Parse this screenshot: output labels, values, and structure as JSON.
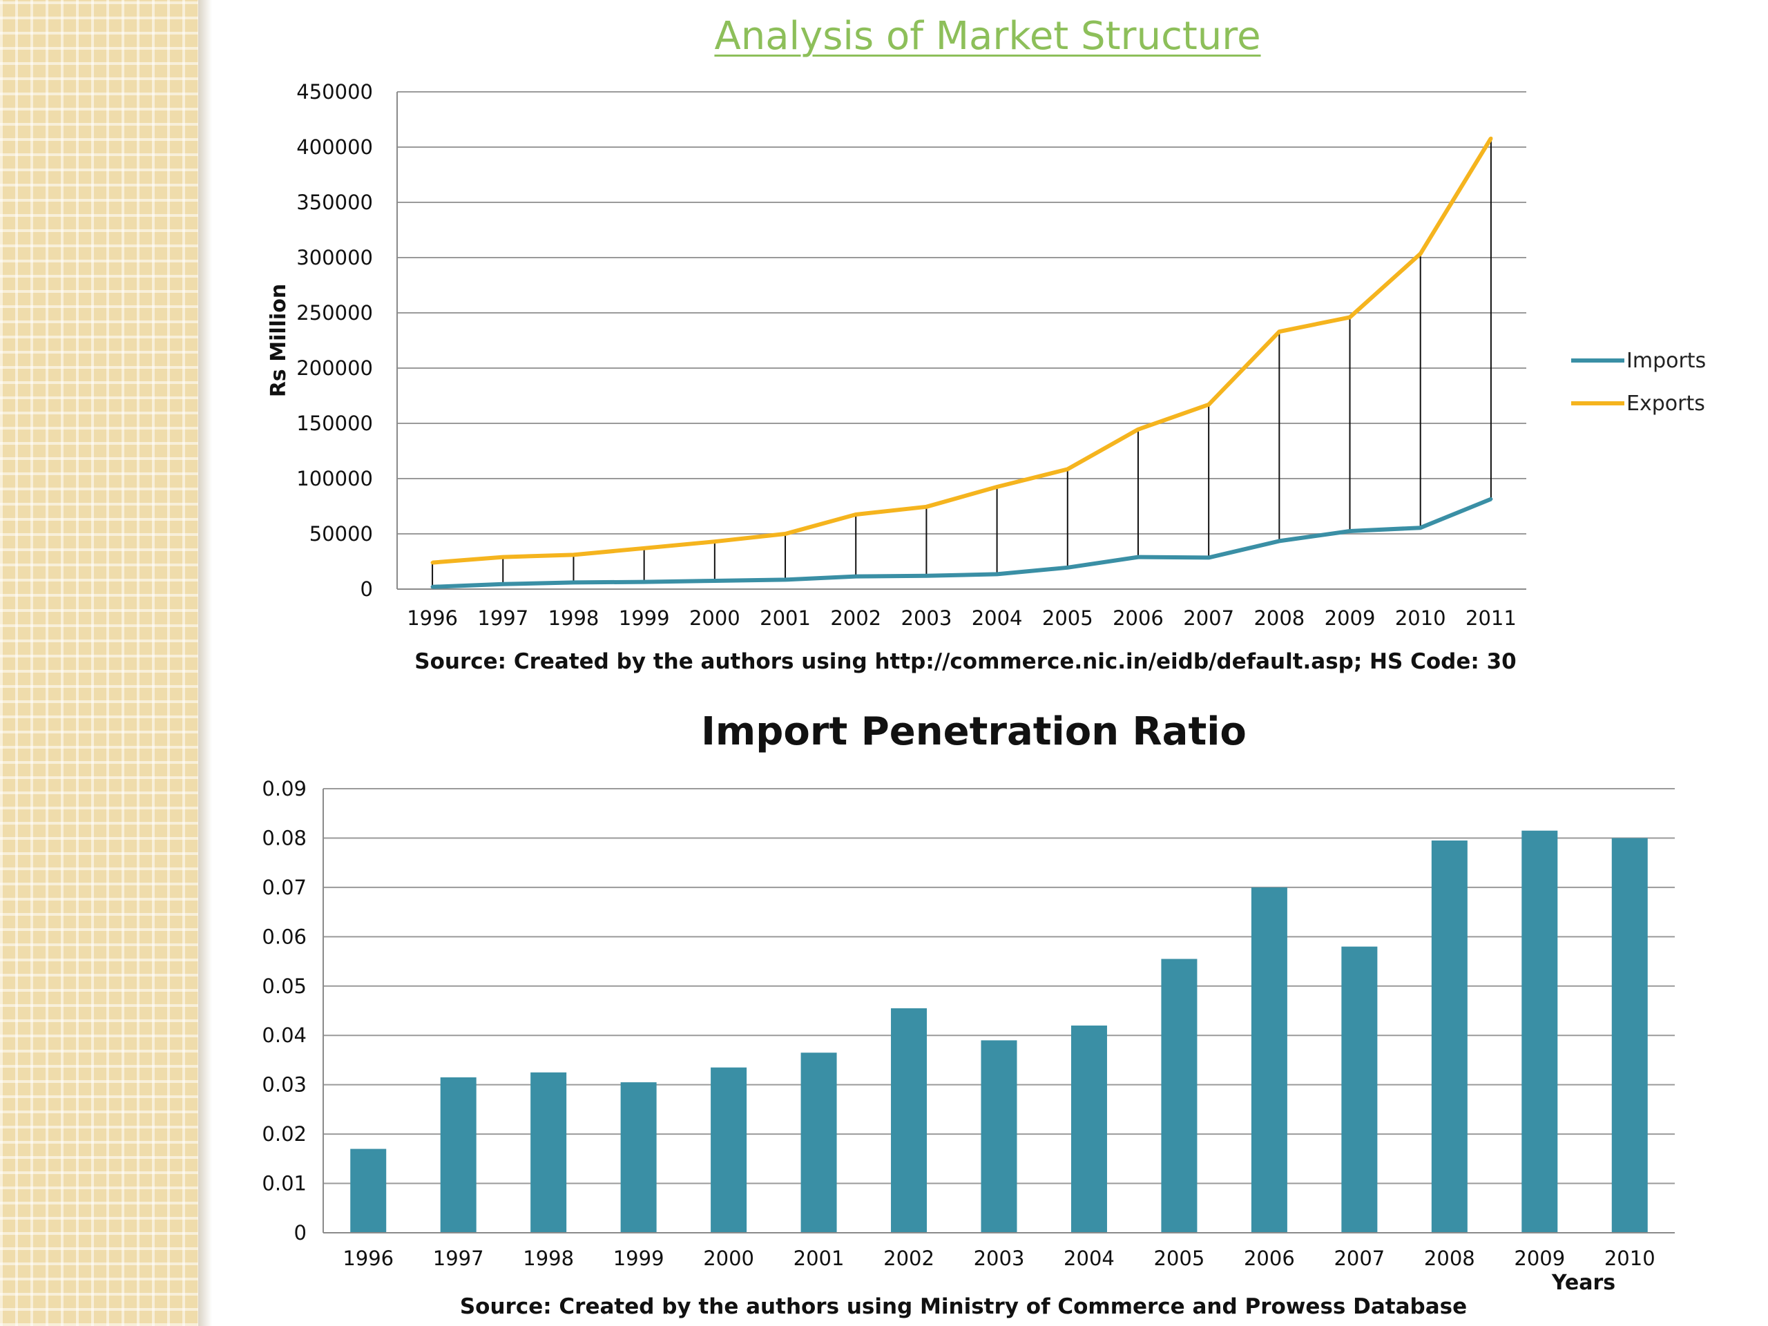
{
  "page_title": "Analysis of Market Structure",
  "chart_data": [
    {
      "type": "line",
      "title": "",
      "ylabel": "Rs Million",
      "xlabel": "",
      "ylim": [
        0,
        450000
      ],
      "y_ticks": [
        0,
        50000,
        100000,
        150000,
        200000,
        250000,
        300000,
        350000,
        400000,
        450000
      ],
      "categories": [
        "1996",
        "1997",
        "1998",
        "1999",
        "2000",
        "2001",
        "2002",
        "2003",
        "2004",
        "2005",
        "2006",
        "2007",
        "2008",
        "2009",
        "2010",
        "2011"
      ],
      "series": [
        {
          "name": "Imports",
          "color": "#3a8fa5",
          "values": [
            2000,
            4500,
            6000,
            6500,
            7500,
            8500,
            11500,
            12000,
            13500,
            19500,
            29000,
            28500,
            43500,
            52500,
            55500,
            81500
          ]
        },
        {
          "name": "Exports",
          "color": "#f5b41e",
          "values": [
            24000,
            29000,
            31000,
            37000,
            43000,
            50000,
            67500,
            74500,
            92500,
            108500,
            144500,
            167000,
            233000,
            246000,
            303500,
            408000
          ]
        }
      ],
      "drop_lines": true,
      "grid": true,
      "legend": "right",
      "source": "Source: Created by the authors using http://commerce.nic.in/eidb/default.asp; HS Code: 30"
    },
    {
      "type": "bar",
      "title": "Import Penetration Ratio",
      "xlabel": "Years",
      "ylabel": "",
      "ylim": [
        0,
        0.09
      ],
      "y_ticks": [
        "0",
        "0.01",
        "0.02",
        "0.03",
        "0.04",
        "0.05",
        "0.06",
        "0.07",
        "0.08",
        "0.09"
      ],
      "categories": [
        "1996",
        "1997",
        "1998",
        "1999",
        "2000",
        "2001",
        "2002",
        "2003",
        "2004",
        "2005",
        "2006",
        "2007",
        "2008",
        "2009",
        "2010"
      ],
      "values": [
        0.017,
        0.0315,
        0.0325,
        0.0305,
        0.0335,
        0.0365,
        0.0455,
        0.039,
        0.042,
        0.0555,
        0.07,
        0.058,
        0.0795,
        0.0815,
        0.08
      ],
      "color": "#3a8fa5",
      "grid": true,
      "source": "Source: Created by the authors  using Ministry of Commerce and Prowess Database"
    }
  ]
}
